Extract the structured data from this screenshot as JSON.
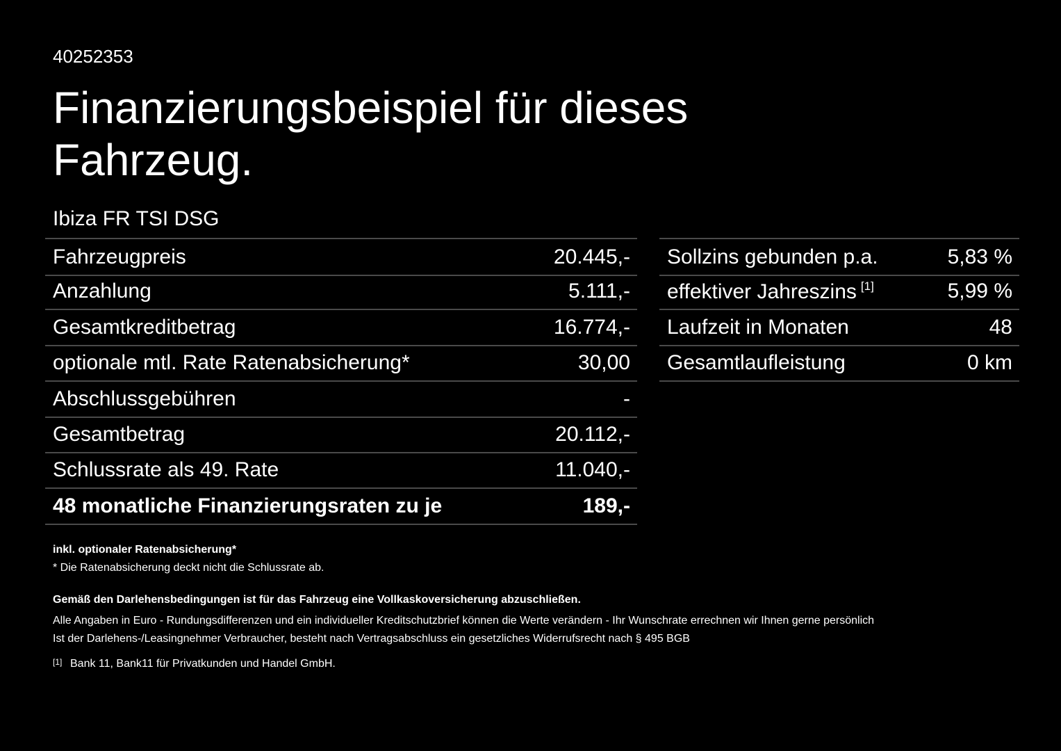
{
  "header": {
    "id": "40252353",
    "title": "Finanzierungsbeispiel für dieses Fahrzeug.",
    "model": "Ibiza FR TSI DSG"
  },
  "left_table": {
    "rows": [
      {
        "label": "Fahrzeugpreis",
        "value": "20.445,-"
      },
      {
        "label": "Anzahlung",
        "value": "5.111,-"
      },
      {
        "label": "Gesamtkreditbetrag",
        "value": "16.774,-"
      },
      {
        "label": "optionale mtl. Rate Ratenabsicherung*",
        "value": "30,00"
      },
      {
        "label": "Abschlussgebühren",
        "value": "-"
      },
      {
        "label": "Gesamtbetrag",
        "value": "20.112,-"
      },
      {
        "label": "Schlussrate als 49. Rate",
        "value": "11.040,-"
      },
      {
        "label": "48 monatliche Finanzierungsraten zu je",
        "value": "189,-"
      }
    ]
  },
  "right_table": {
    "rows": [
      {
        "label": "Sollzins gebunden p.a.",
        "value": "5,83 %"
      },
      {
        "label": "effektiver Jahreszins",
        "note": "[1]",
        "value": "5,99 %"
      },
      {
        "label": "Laufzeit in Monaten",
        "value": "48"
      },
      {
        "label": "Gesamtlaufleistung",
        "value": "0 km"
      }
    ]
  },
  "notes": {
    "insurance_bold": "inkl. optionaler Ratenabsicherung*",
    "insurance": "* Die Ratenabsicherung deckt nicht die Schlussrate ab.",
    "legal_bold": "Gemäß den Darlehensbedingungen ist für das Fahrzeug eine Vollkaskoversicherung abzuschließen.",
    "legal_1": "Alle Angaben in Euro - Rundungsdifferenzen und ein individueller Kreditschutzbrief können die Werte verändern - Ihr Wunschrate errechnen wir Ihnen gerne persönlich",
    "legal_2": "Ist der Darlehens-/Leasingnehmer Verbraucher, besteht nach Vertragsabschluss ein gesetzliches Widerrufsrecht nach § 495 BGB",
    "footnote_marker": "[1]",
    "footnote": "Bank 11, Bank11 für Privatkunden und Handel GmbH."
  }
}
